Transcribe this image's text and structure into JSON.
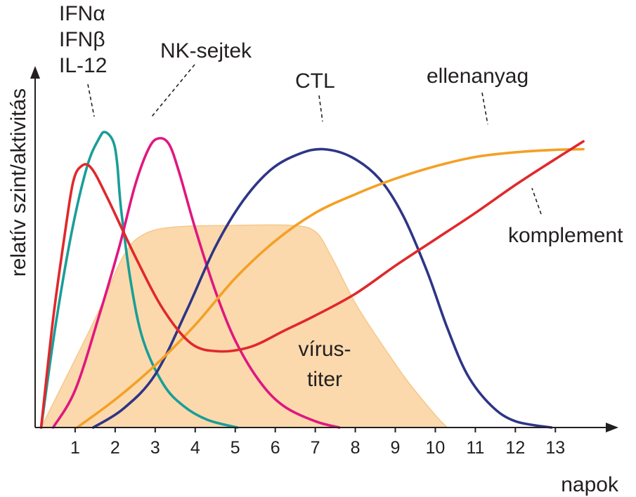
{
  "chart_data": {
    "type": "line",
    "xlabel": "napok",
    "ylabel": "relatív szint/aktivitás",
    "x_ticks": [
      "1",
      "2",
      "3",
      "4",
      "5",
      "6",
      "7",
      "8",
      "9",
      "10",
      "11",
      "12",
      "13"
    ],
    "xlim": [
      0,
      14.4
    ],
    "ylim": [
      0,
      100
    ],
    "grid": false,
    "area": {
      "label_lines": [
        "vírus-",
        "titer"
      ],
      "color": "#fbd9ad",
      "points": [
        [
          0.15,
          0
        ],
        [
          1.5,
          35
        ],
        [
          2.2,
          55
        ],
        [
          2.7,
          62
        ],
        [
          3.5,
          64.5
        ],
        [
          5,
          65
        ],
        [
          6.4,
          65
        ],
        [
          7,
          63
        ],
        [
          7.4,
          55
        ],
        [
          8,
          40
        ],
        [
          8.6,
          28
        ],
        [
          9.3,
          15
        ],
        [
          10,
          4
        ],
        [
          10.3,
          0
        ]
      ]
    },
    "series": [
      {
        "key": "ifn",
        "label_lines": [
          "IFNα",
          "IFNβ",
          "IL-12"
        ],
        "color": "#1a9e98",
        "points": [
          [
            0.15,
            0
          ],
          [
            0.5,
            32
          ],
          [
            0.9,
            62
          ],
          [
            1.3,
            84
          ],
          [
            1.6,
            93
          ],
          [
            1.75,
            95
          ],
          [
            1.95,
            92
          ],
          [
            2.05,
            85
          ],
          [
            2.15,
            70
          ],
          [
            2.4,
            46
          ],
          [
            2.7,
            28
          ],
          [
            3.2,
            14
          ],
          [
            3.7,
            7
          ],
          [
            4.3,
            2.5
          ],
          [
            5.05,
            0
          ]
        ]
      },
      {
        "key": "nk",
        "label_lines": [
          "NK-sejtek"
        ],
        "color": "#e0177f",
        "points": [
          [
            0.45,
            0
          ],
          [
            1,
            12
          ],
          [
            1.6,
            36
          ],
          [
            2.1,
            58
          ],
          [
            2.5,
            78
          ],
          [
            2.85,
            90
          ],
          [
            3.1,
            93
          ],
          [
            3.35,
            91
          ],
          [
            3.6,
            82
          ],
          [
            4,
            64
          ],
          [
            4.5,
            44
          ],
          [
            5,
            28
          ],
          [
            5.6,
            15
          ],
          [
            6.2,
            7
          ],
          [
            7,
            2
          ],
          [
            7.6,
            0
          ]
        ]
      },
      {
        "key": "ctl",
        "label_lines": [
          "CTL"
        ],
        "color": "#2e3586",
        "points": [
          [
            1.45,
            0
          ],
          [
            2.2,
            6
          ],
          [
            3,
            17
          ],
          [
            3.8,
            38
          ],
          [
            4.5,
            58
          ],
          [
            5.2,
            73
          ],
          [
            5.9,
            83
          ],
          [
            6.6,
            88
          ],
          [
            7.2,
            89.5
          ],
          [
            7.9,
            87
          ],
          [
            8.6,
            80
          ],
          [
            9.2,
            68
          ],
          [
            9.8,
            50
          ],
          [
            10.3,
            32
          ],
          [
            10.8,
            17
          ],
          [
            11.4,
            7
          ],
          [
            12,
            2
          ],
          [
            12.9,
            0
          ]
        ]
      },
      {
        "key": "ellen",
        "label_lines": [
          "ellenanyag"
        ],
        "color": "#f4a025",
        "points": [
          [
            1.05,
            0
          ],
          [
            2,
            9
          ],
          [
            3,
            20
          ],
          [
            4,
            33
          ],
          [
            5,
            48
          ],
          [
            6,
            60
          ],
          [
            7,
            69
          ],
          [
            8,
            75
          ],
          [
            9,
            80
          ],
          [
            10,
            84
          ],
          [
            11,
            87
          ],
          [
            12,
            88.5
          ],
          [
            13,
            89.3
          ],
          [
            13.7,
            89.5
          ]
        ]
      },
      {
        "key": "kompl",
        "label_lines": [
          "komplement"
        ],
        "color": "#e0282b",
        "points": [
          [
            0.15,
            0
          ],
          [
            0.45,
            35
          ],
          [
            0.75,
            63
          ],
          [
            0.95,
            79
          ],
          [
            1.15,
            84
          ],
          [
            1.4,
            83.5
          ],
          [
            1.8,
            74
          ],
          [
            2.5,
            55
          ],
          [
            3.2,
            38
          ],
          [
            3.9,
            27
          ],
          [
            4.6,
            24.5
          ],
          [
            5.4,
            26
          ],
          [
            6.2,
            31
          ],
          [
            7,
            36
          ],
          [
            8,
            43
          ],
          [
            9,
            52
          ],
          [
            10,
            60.5
          ],
          [
            11,
            69
          ],
          [
            12,
            78
          ],
          [
            12.9,
            85.5
          ],
          [
            13.7,
            92
          ]
        ]
      }
    ]
  }
}
